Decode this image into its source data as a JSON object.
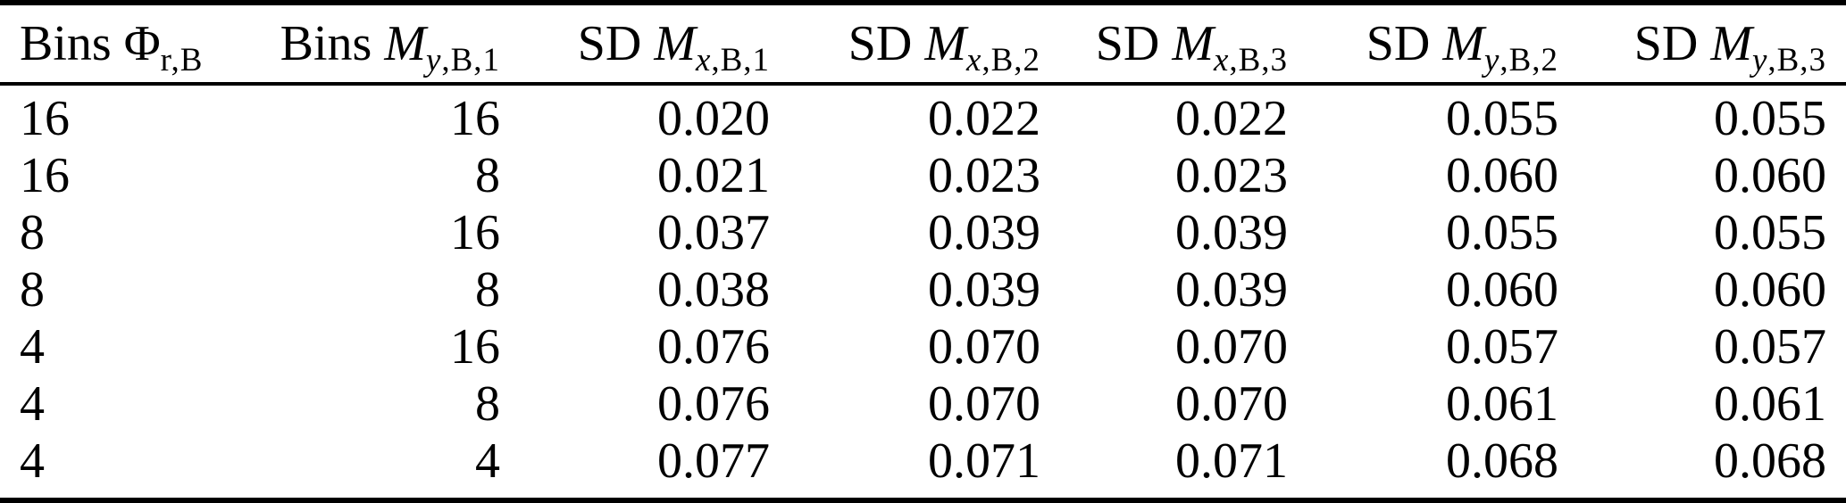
{
  "table": {
    "description": "Standard deviation results table from a scientific paper",
    "text_color": "#000000",
    "rule_color": "#000000",
    "background_color": "#ffffff",
    "columns": [
      {
        "label": "Bins Φr,B",
        "prefix": "Bins",
        "symbol": "Φ",
        "symbol_italic": false,
        "sub_italic": "",
        "sub_rest": "r,B",
        "align": "left"
      },
      {
        "label": "Bins My,B,1",
        "prefix": "Bins",
        "symbol": "M",
        "symbol_italic": true,
        "sub_italic": "y",
        "sub_rest": ",B,1",
        "align": "right"
      },
      {
        "label": "SD Mx,B,1",
        "prefix": "SD",
        "symbol": "M",
        "symbol_italic": true,
        "sub_italic": "x",
        "sub_rest": ",B,1",
        "align": "right"
      },
      {
        "label": "SD Mx,B,2",
        "prefix": "SD",
        "symbol": "M",
        "symbol_italic": true,
        "sub_italic": "x",
        "sub_rest": ",B,2",
        "align": "right"
      },
      {
        "label": "SD Mx,B,3",
        "prefix": "SD",
        "symbol": "M",
        "symbol_italic": true,
        "sub_italic": "x",
        "sub_rest": ",B,3",
        "align": "right"
      },
      {
        "label": "SD My,B,2",
        "prefix": "SD",
        "symbol": "M",
        "symbol_italic": true,
        "sub_italic": "y",
        "sub_rest": ",B,2",
        "align": "right"
      },
      {
        "label": "SD My,B,3",
        "prefix": "SD",
        "symbol": "M",
        "symbol_italic": true,
        "sub_italic": "y",
        "sub_rest": ",B,3",
        "align": "right"
      }
    ],
    "rows": [
      [
        "16",
        "16",
        "0.020",
        "0.022",
        "0.022",
        "0.055",
        "0.055"
      ],
      [
        "16",
        "8",
        "0.021",
        "0.023",
        "0.023",
        "0.060",
        "0.060"
      ],
      [
        "8",
        "16",
        "0.037",
        "0.039",
        "0.039",
        "0.055",
        "0.055"
      ],
      [
        "8",
        "8",
        "0.038",
        "0.039",
        "0.039",
        "0.060",
        "0.060"
      ],
      [
        "4",
        "16",
        "0.076",
        "0.070",
        "0.070",
        "0.057",
        "0.057"
      ],
      [
        "4",
        "8",
        "0.076",
        "0.070",
        "0.070",
        "0.061",
        "0.061"
      ],
      [
        "4",
        "4",
        "0.077",
        "0.071",
        "0.071",
        "0.068",
        "0.068"
      ]
    ]
  }
}
